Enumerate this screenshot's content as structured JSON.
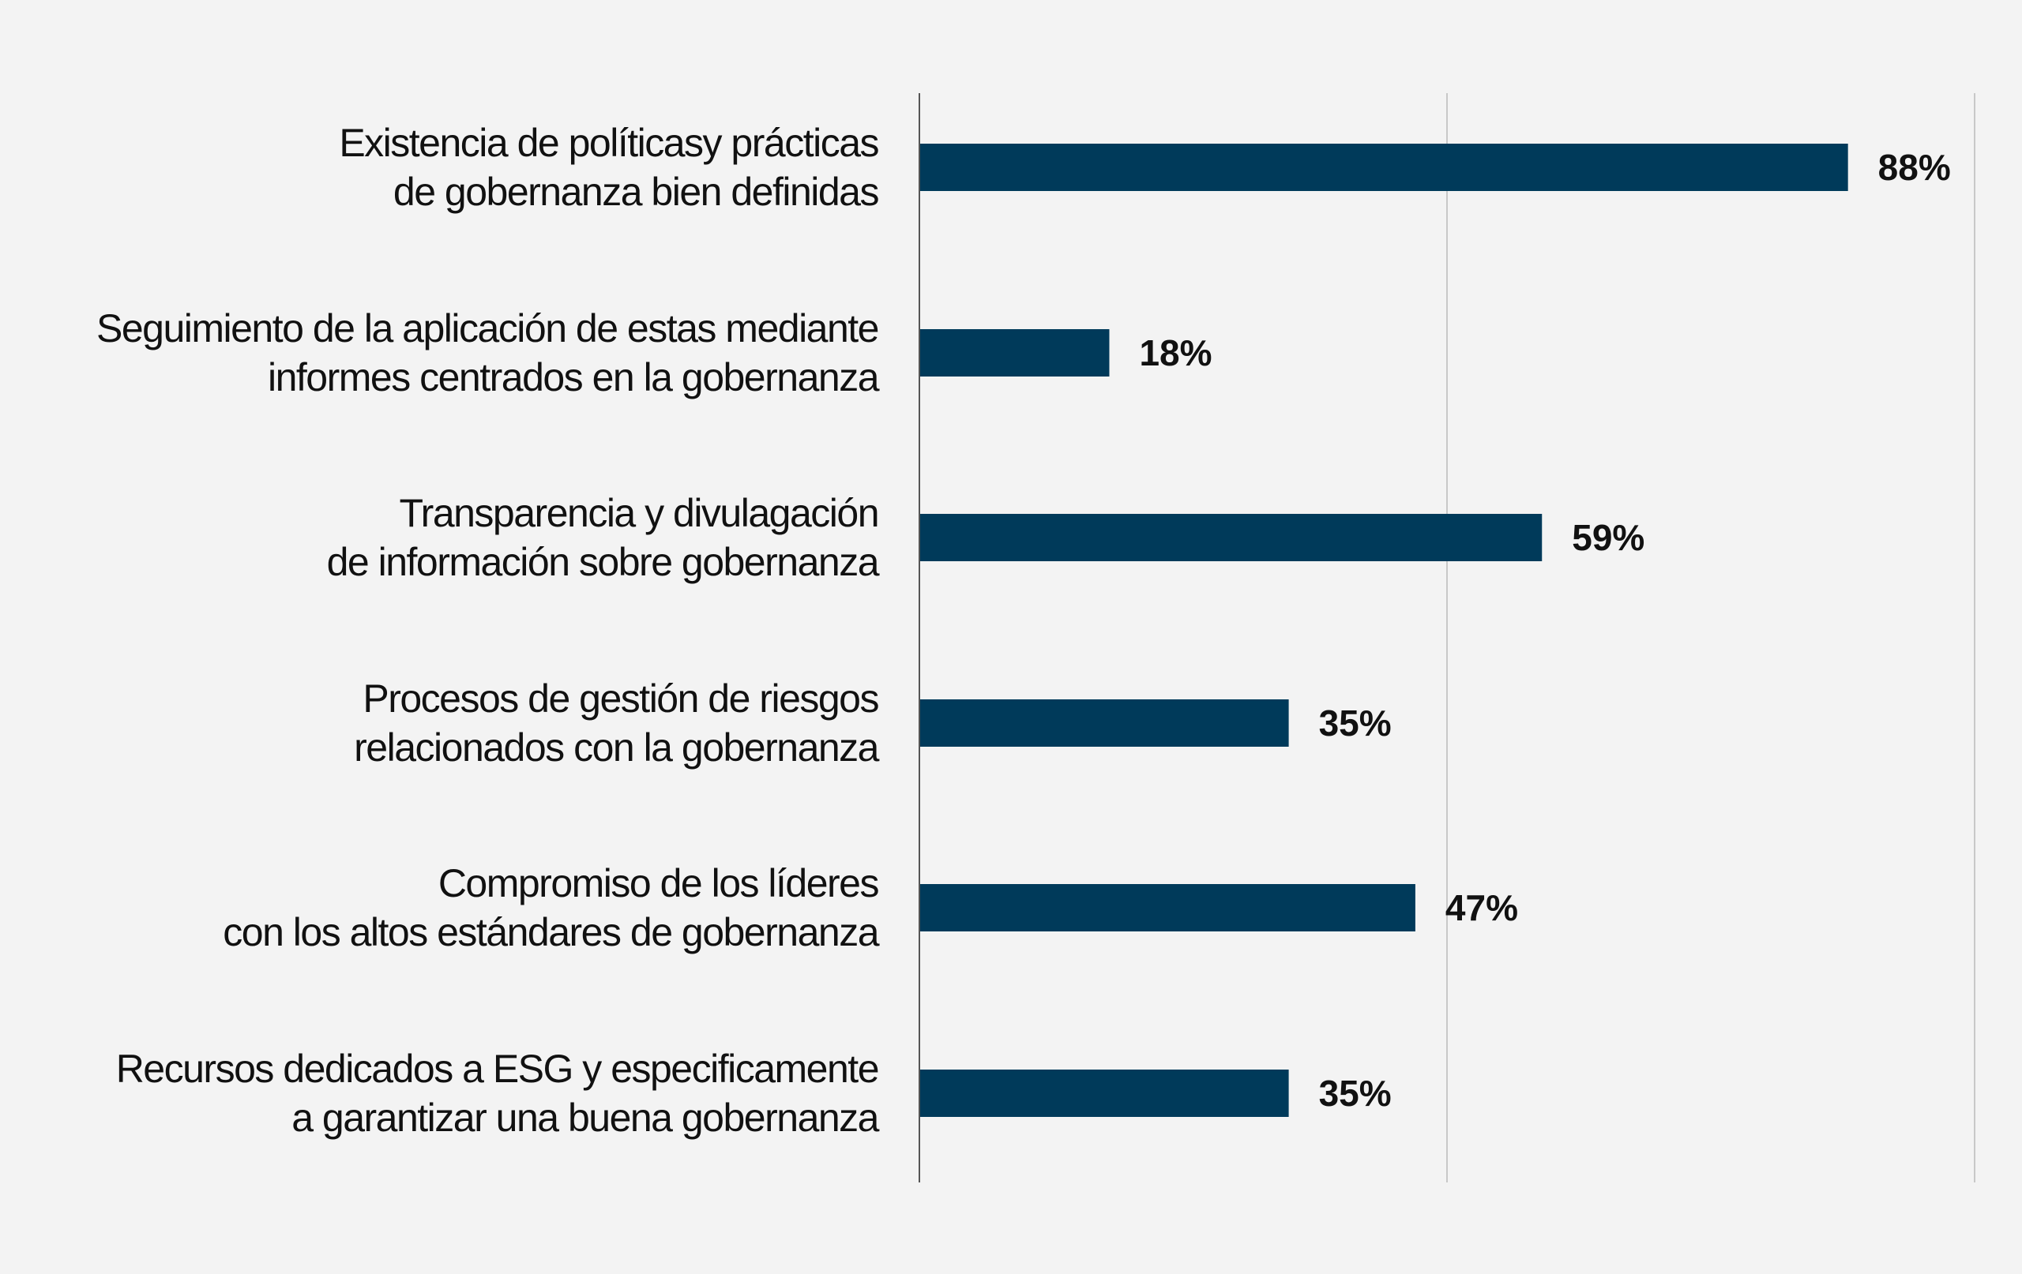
{
  "chart_data": {
    "type": "bar",
    "orientation": "horizontal",
    "categories": [
      [
        "Existencia de políticasy prácticas",
        "de gobernanza bien definidas"
      ],
      [
        "Seguimiento de la aplicación de estas mediante",
        "informes centrados en la gobernanza"
      ],
      [
        "Transparencia y divulagación",
        "de información sobre gobernanza"
      ],
      [
        "Procesos de gestión de riesgos",
        "relacionados con la gobernanza"
      ],
      [
        "Compromiso de los líderes",
        "con los altos estándares de gobernanza"
      ],
      [
        "Recursos dedicados a ESG y especificamente",
        "a garantizar una buena gobernanza"
      ]
    ],
    "values": [
      88,
      18,
      59,
      35,
      47,
      35
    ],
    "value_labels": [
      "88%",
      "18%",
      "59%",
      "35%",
      "47%",
      "35%"
    ],
    "xlim": [
      0,
      100
    ],
    "gridlines": [
      50,
      100
    ],
    "grid": true,
    "bar_color": "#003a5a",
    "title": "",
    "xlabel": "",
    "ylabel": ""
  }
}
